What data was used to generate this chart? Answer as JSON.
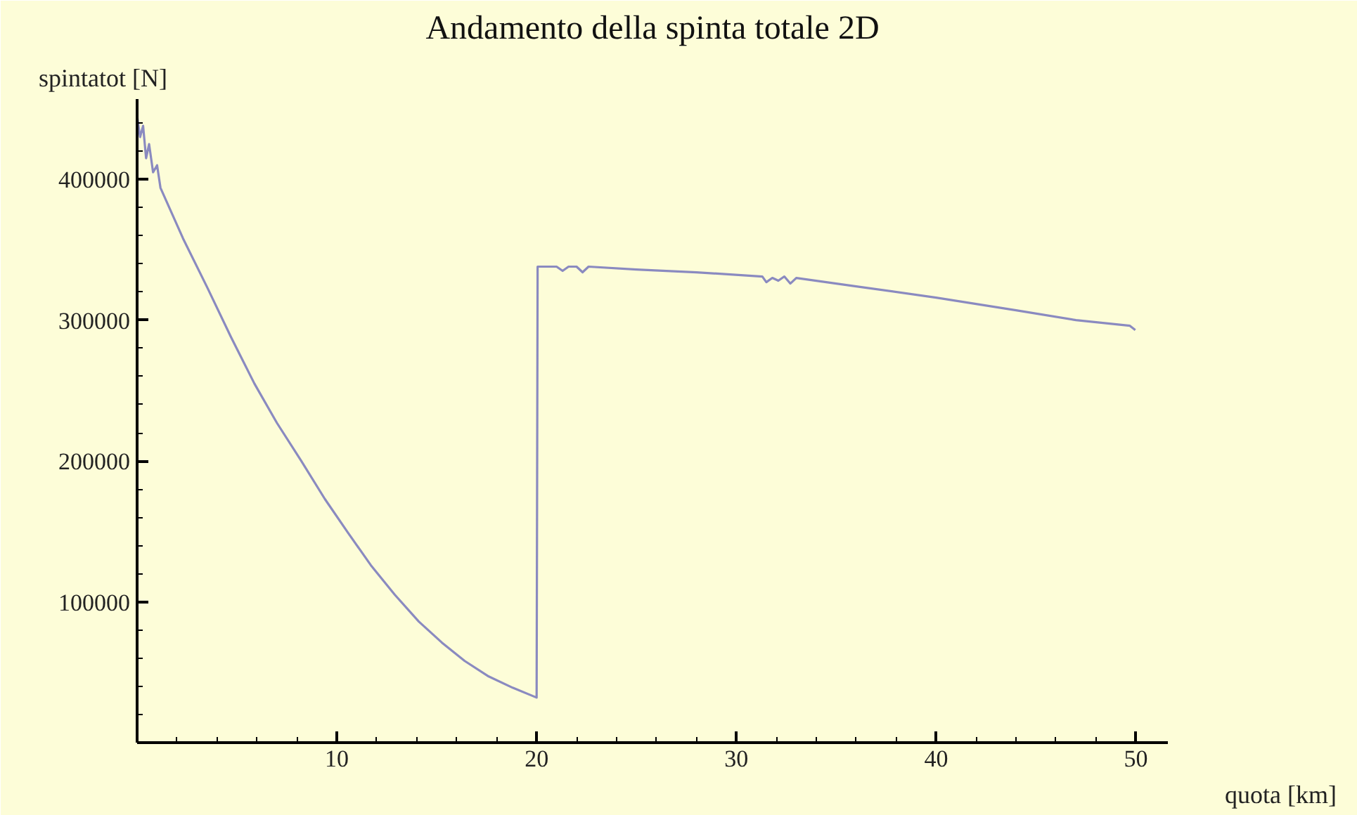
{
  "chart_data": {
    "type": "line",
    "title": "Andamento della spinta totale 2D",
    "xlabel": "quota [km]",
    "ylabel": "spintatot [N]",
    "x": [
      0,
      0.15,
      0.3,
      0.45,
      0.6,
      0.8,
      1.0,
      1.17,
      2.3,
      3.52,
      4.7,
      5.87,
      7.0,
      8.22,
      9.4,
      10.56,
      11.7,
      12.9,
      14.1,
      15.26,
      16.4,
      17.6,
      18.8,
      20.0,
      20.05,
      21.0,
      21.3,
      21.6,
      22.0,
      22.3,
      22.6,
      25.0,
      28.0,
      31.3,
      31.5,
      31.8,
      32.1,
      32.4,
      32.7,
      33.0,
      36.0,
      40.0,
      44.0,
      47.0,
      49.7,
      49.97
    ],
    "series": [
      {
        "color": "#8a8ac0",
        "values": [
          445000,
          430000,
          438000,
          415000,
          425000,
          405000,
          410000,
          394000,
          358000,
          323000,
          288000,
          255000,
          227000,
          200000,
          173000,
          149000,
          126000,
          105000,
          86000,
          71000,
          58000,
          47000,
          39000,
          32000,
          338000,
          338000,
          335000,
          338000,
          338000,
          334000,
          338000,
          336000,
          334000,
          331000,
          327000,
          330000,
          328000,
          331000,
          326000,
          330000,
          324000,
          316000,
          307000,
          300000,
          296000,
          293000
        ]
      }
    ],
    "xlim": [
      0,
      51.6
    ],
    "ylim": [
      0,
      457000
    ],
    "xticks": [
      10,
      20,
      30,
      40,
      50
    ],
    "yticks": [
      100000,
      200000,
      300000,
      400000
    ],
    "grid": false,
    "marker": "none",
    "line_style": "solid"
  }
}
